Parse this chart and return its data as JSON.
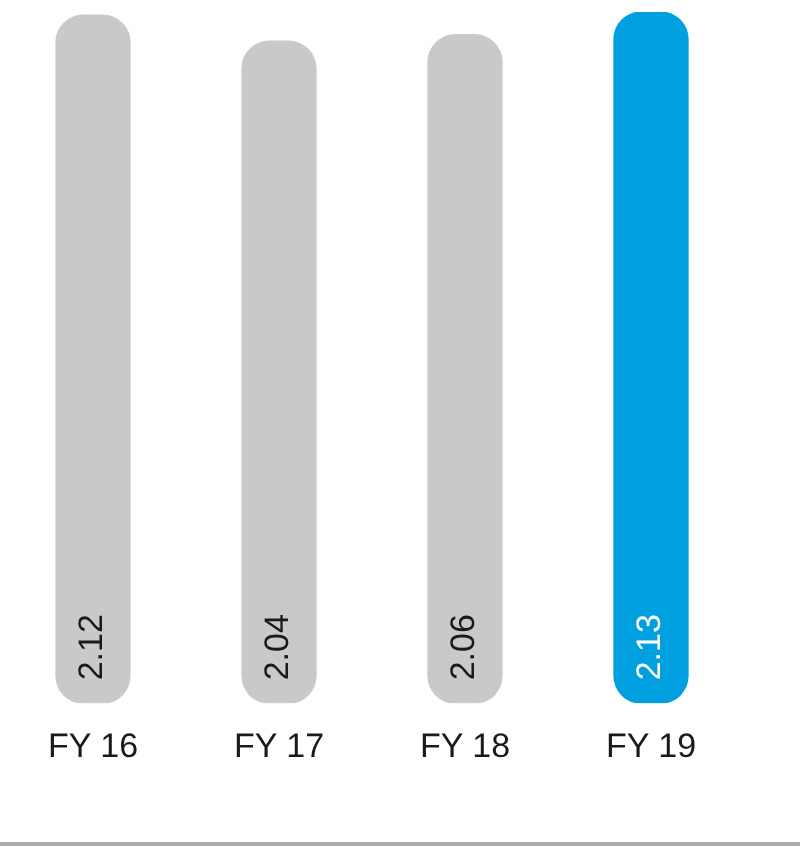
{
  "chart_data": {
    "type": "bar",
    "categories": [
      "FY 16",
      "FY 17",
      "FY 18",
      "FY 19"
    ],
    "values": [
      2.12,
      2.04,
      2.06,
      2.13
    ],
    "colors": [
      "#c8c9cb",
      "#c8c9cb",
      "#c8c9cb",
      "#00a0e0"
    ],
    "data_labels": true,
    "legend": false,
    "grid": false
  }
}
